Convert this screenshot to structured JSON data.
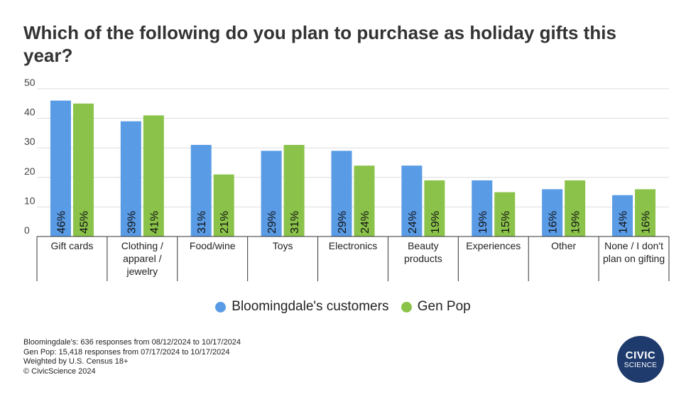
{
  "chart_data": {
    "type": "bar",
    "title": "Which of the following do you plan to purchase as holiday gifts this year?",
    "categories": [
      [
        "Gift cards"
      ],
      [
        "Clothing /",
        "apparel /",
        "jewelry"
      ],
      [
        "Food/wine"
      ],
      [
        "Toys"
      ],
      [
        "Electronics"
      ],
      [
        "Beauty",
        "products"
      ],
      [
        "Experiences"
      ],
      [
        "Other"
      ],
      [
        "None / I don't",
        "plan on gifting"
      ]
    ],
    "series": [
      {
        "name": "Bloomingdale's customers",
        "color": "#5a9be6",
        "values": [
          46,
          39,
          31,
          29,
          29,
          24,
          19,
          16,
          14
        ]
      },
      {
        "name": "Gen Pop",
        "color": "#8bc34a",
        "values": [
          45,
          41,
          21,
          31,
          24,
          19,
          15,
          19,
          16
        ]
      }
    ],
    "ylim": [
      0,
      50
    ],
    "yticks": [
      0,
      10,
      20,
      30,
      40,
      50
    ],
    "value_suffix": "%",
    "grid": true,
    "legend": "bottom-center"
  },
  "footnotes": [
    "Bloomingdale's: 636 responses from 08/12/2024 to 10/17/2024",
    "Gen Pop: 15,418 responses from 07/17/2024 to 10/17/2024",
    "Weighted by U.S. Census 18+",
    "© CivicScience 2024"
  ],
  "logo": {
    "line1": "CIVIC",
    "line2": "SCIENCE"
  }
}
